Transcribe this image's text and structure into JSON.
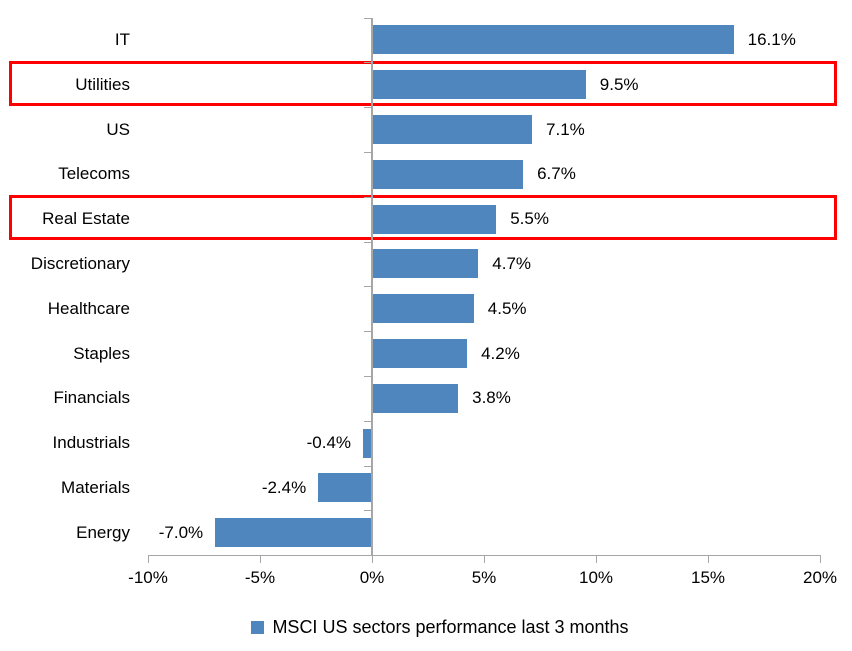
{
  "chart_data": {
    "type": "bar",
    "orientation": "horizontal",
    "title": "",
    "categories": [
      "IT",
      "Utilities",
      "US",
      "Telecoms",
      "Real Estate",
      "Discretionary",
      "Healthcare",
      "Staples",
      "Financials",
      "Industrials",
      "Materials",
      "Energy"
    ],
    "values": [
      16.1,
      9.5,
      7.1,
      6.7,
      5.5,
      4.7,
      4.5,
      4.2,
      3.8,
      -0.4,
      -2.4,
      -7.0
    ],
    "value_labels": [
      "16.1%",
      "9.5%",
      "7.1%",
      "6.7%",
      "5.5%",
      "4.7%",
      "4.5%",
      "4.2%",
      "3.8%",
      "-0.4%",
      "-2.4%",
      "-7.0%"
    ],
    "highlighted_categories": [
      "Utilities",
      "Real Estate"
    ],
    "x_axis": {
      "min": -10,
      "max": 20,
      "tick_values": [
        -10,
        -5,
        0,
        5,
        10,
        15,
        20
      ],
      "tick_labels": [
        "-10%",
        "-5%",
        "0%",
        "5%",
        "10%",
        "15%",
        "20%"
      ]
    },
    "grid": false,
    "legend": {
      "position": "bottom",
      "label": "MSCI US sectors performance last 3 months"
    },
    "colors": {
      "bar": "#4f86bd",
      "highlight_box": "#fe0000",
      "axis": "#a6a6a6",
      "text": "#000000"
    }
  }
}
